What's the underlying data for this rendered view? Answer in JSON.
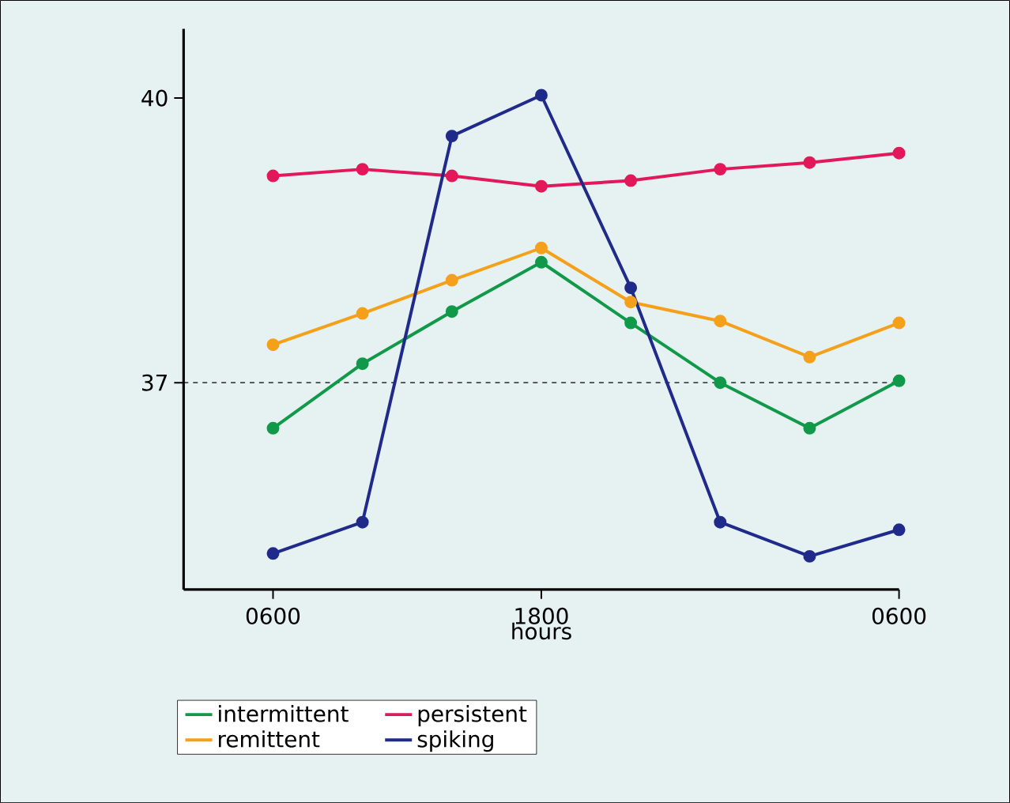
{
  "chart_data": {
    "type": "line",
    "xlabel": "hours",
    "categories": [
      "0600",
      null,
      null,
      "1800",
      null,
      null,
      null,
      "0600"
    ],
    "series": [
      {
        "name": "intermittent",
        "color": "#11994a",
        "values": [
          36.52,
          37.2,
          37.75,
          38.27,
          37.63,
          37.0,
          36.52,
          37.02
        ]
      },
      {
        "name": "persistent",
        "color": "#e2185b",
        "values": [
          39.18,
          39.25,
          39.18,
          39.07,
          39.13,
          39.25,
          39.32,
          39.42
        ]
      },
      {
        "name": "remittent",
        "color": "#f5a01a",
        "values": [
          37.4,
          37.73,
          38.08,
          38.42,
          37.85,
          37.65,
          37.27,
          37.63
        ]
      },
      {
        "name": "spiking",
        "color": "#1f2a8a",
        "values": [
          35.2,
          35.53,
          39.6,
          40.03,
          38.0,
          35.53,
          35.17,
          35.45
        ]
      }
    ],
    "ylim": [
      34.82,
      40.73
    ],
    "yticks": [
      37,
      40
    ],
    "ref_lines": [
      {
        "axis": "y",
        "value": 37,
        "line_style": "dashed",
        "color": "#000000"
      }
    ],
    "legend": "bottom",
    "marker": "circle",
    "line_style": "solid",
    "grid": false
  }
}
